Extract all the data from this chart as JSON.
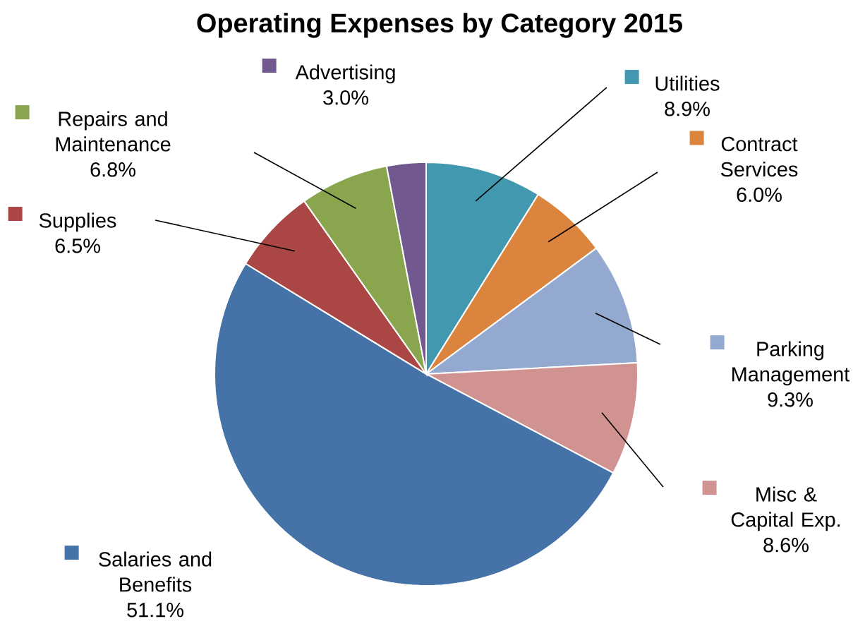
{
  "chart_data": {
    "type": "pie",
    "title": "Operating Expenses by Category 2015",
    "categories": [
      "Utilities",
      "Contract Services",
      "Parking Management",
      "Misc & Capital Exp.",
      "Salaries and Benefits",
      "Supplies",
      "Repairs and Maintenance",
      "Advertising"
    ],
    "values": [
      8.9,
      6.0,
      9.3,
      8.6,
      51.1,
      6.5,
      6.8,
      3.0
    ],
    "colors": [
      "#4198af",
      "#db843d",
      "#93a9cf",
      "#d19392",
      "#4572a7",
      "#aa4643",
      "#89a54e",
      "#71588f"
    ],
    "value_labels": [
      "8.9%",
      "6.0%",
      "9.3%",
      "8.6%",
      "51.1%",
      "6.5%",
      "6.8%",
      "3.0%"
    ],
    "legend": "right"
  }
}
